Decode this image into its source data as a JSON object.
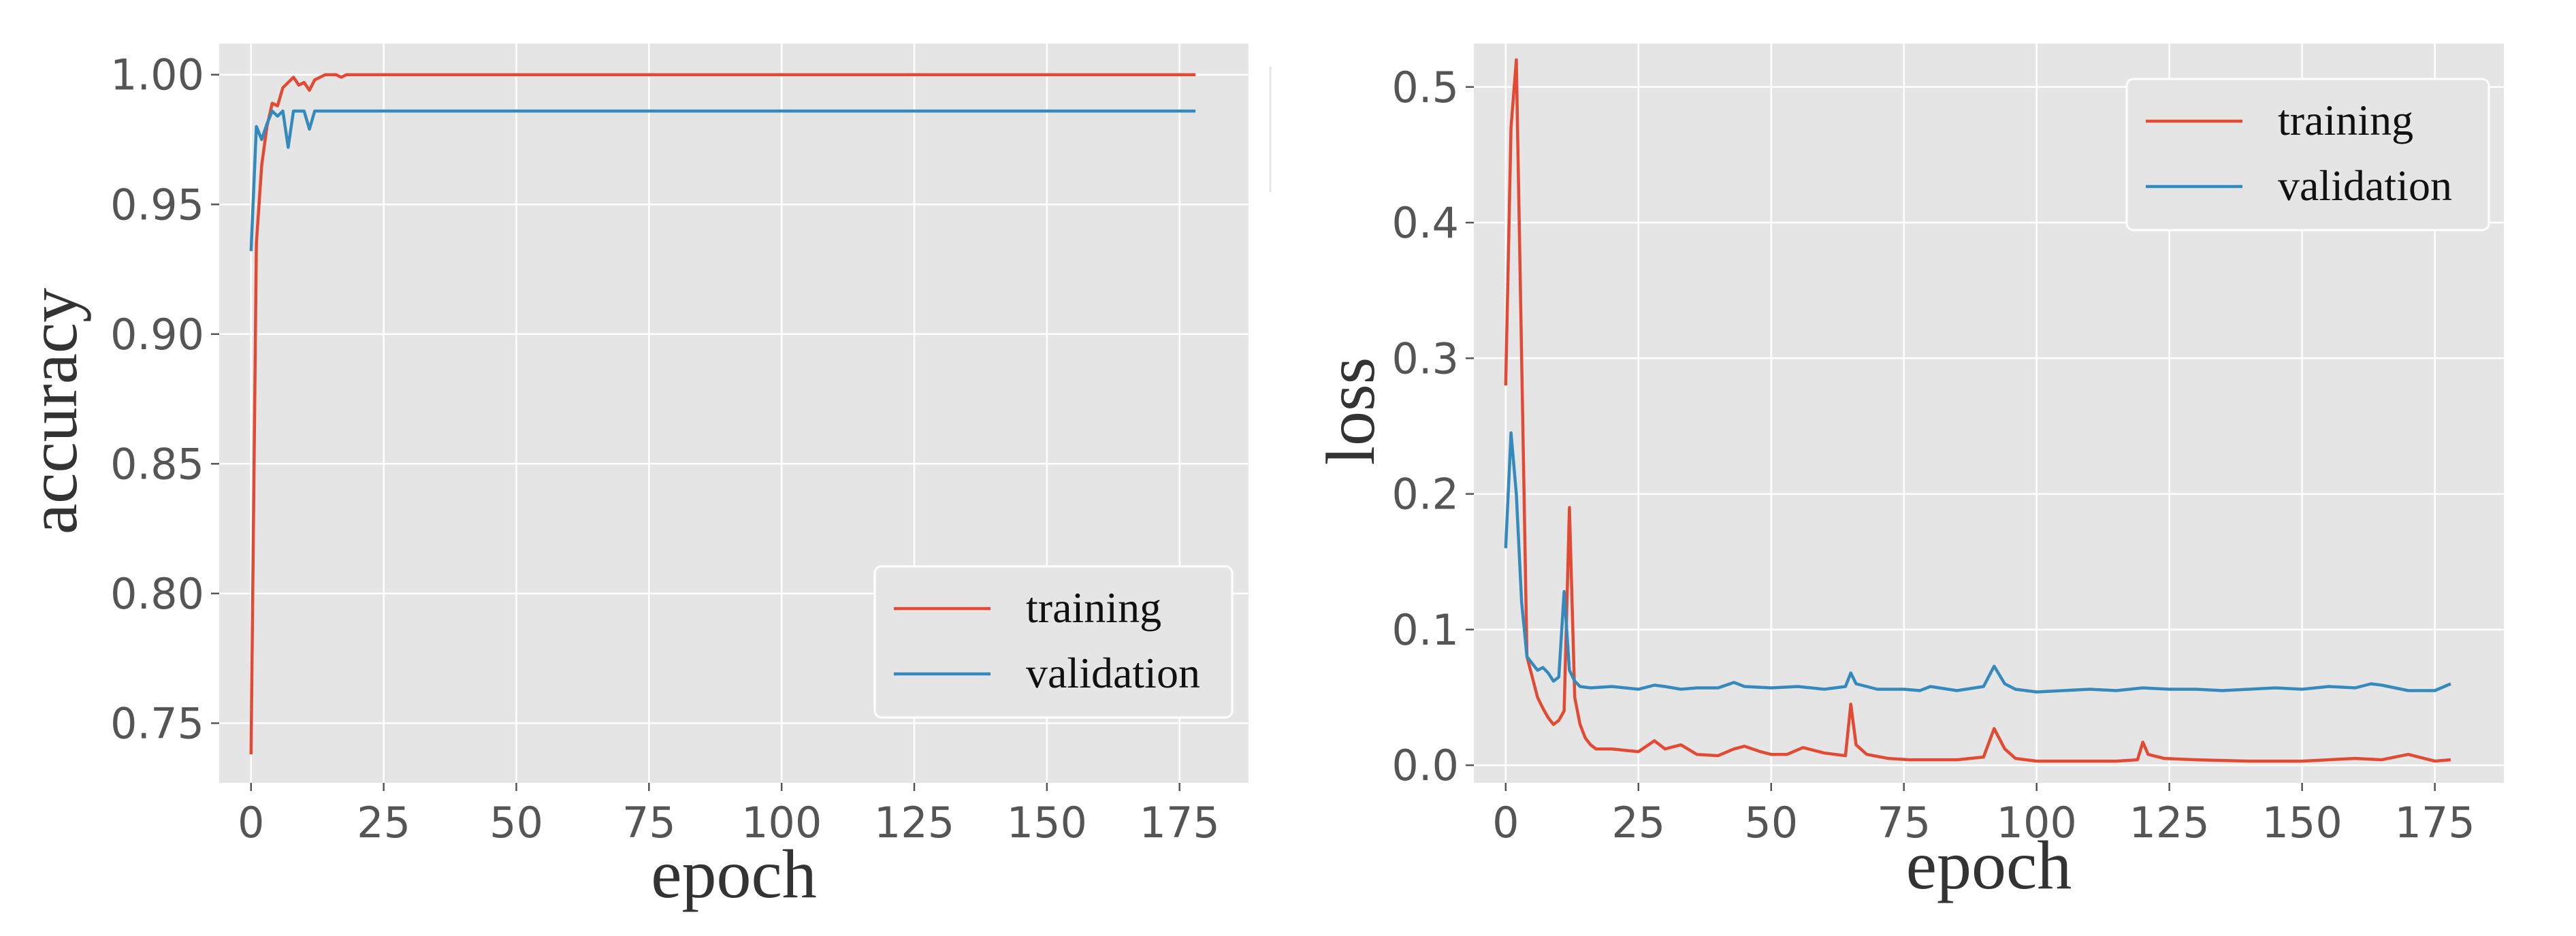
{
  "colors": {
    "training": "#e24a33",
    "validation": "#348abd",
    "background": "#e5e5e5",
    "grid": "#ffffff"
  },
  "chart_data": [
    {
      "type": "line",
      "title": "",
      "xlabel": "epoch",
      "ylabel": "accuracy",
      "xlim": [
        -6,
        188
      ],
      "ylim": [
        0.727,
        1.012
      ],
      "xticks": [
        0,
        25,
        50,
        75,
        100,
        125,
        150,
        175
      ],
      "yticks": [
        0.75,
        0.8,
        0.85,
        0.9,
        0.95,
        1.0
      ],
      "ytick_labels": [
        "0.75",
        "0.80",
        "0.85",
        "0.90",
        "0.95",
        "1.00"
      ],
      "grid": true,
      "legend": {
        "position": "lower-right",
        "entries": [
          "training",
          "validation"
        ]
      },
      "series": [
        {
          "name": "training",
          "color_key": "training",
          "points": [
            [
              0,
              0.738
            ],
            [
              1,
              0.935
            ],
            [
              2,
              0.965
            ],
            [
              3,
              0.98
            ],
            [
              4,
              0.989
            ],
            [
              5,
              0.988
            ],
            [
              6,
              0.995
            ],
            [
              7,
              0.997
            ],
            [
              8,
              0.999
            ],
            [
              9,
              0.996
            ],
            [
              10,
              0.997
            ],
            [
              11,
              0.994
            ],
            [
              12,
              0.998
            ],
            [
              13,
              0.999
            ],
            [
              14,
              1.0
            ],
            [
              15,
              1.0
            ],
            [
              16,
              1.0
            ],
            [
              17,
              0.999
            ],
            [
              18,
              1.0
            ],
            [
              20,
              1.0
            ],
            [
              30,
              1.0
            ],
            [
              60,
              1.0
            ],
            [
              100,
              1.0
            ],
            [
              150,
              1.0
            ],
            [
              178,
              1.0
            ]
          ]
        },
        {
          "name": "validation",
          "color_key": "validation",
          "points": [
            [
              0,
              0.932
            ],
            [
              1,
              0.98
            ],
            [
              2,
              0.975
            ],
            [
              3,
              0.981
            ],
            [
              4,
              0.986
            ],
            [
              5,
              0.984
            ],
            [
              6,
              0.986
            ],
            [
              7,
              0.972
            ],
            [
              8,
              0.986
            ],
            [
              9,
              0.986
            ],
            [
              10,
              0.986
            ],
            [
              11,
              0.979
            ],
            [
              12,
              0.986
            ],
            [
              13,
              0.986
            ],
            [
              20,
              0.986
            ],
            [
              60,
              0.986
            ],
            [
              100,
              0.986
            ],
            [
              150,
              0.986
            ],
            [
              178,
              0.986
            ]
          ]
        }
      ]
    },
    {
      "type": "line",
      "title": "",
      "xlabel": "epoch",
      "ylabel": "loss",
      "xlim": [
        -6,
        188
      ],
      "ylim": [
        -0.013,
        0.532
      ],
      "xticks": [
        0,
        25,
        50,
        75,
        100,
        125,
        150,
        175
      ],
      "yticks": [
        0.0,
        0.1,
        0.2,
        0.3,
        0.4,
        0.5
      ],
      "ytick_labels": [
        "0.0",
        "0.1",
        "0.2",
        "0.3",
        "0.4",
        "0.5"
      ],
      "grid": true,
      "legend": {
        "position": "upper-right",
        "entries": [
          "training",
          "validation"
        ]
      },
      "series": [
        {
          "name": "training",
          "color_key": "training",
          "points": [
            [
              0,
              0.28
            ],
            [
              1,
              0.47
            ],
            [
              2,
              0.52
            ],
            [
              3,
              0.3
            ],
            [
              4,
              0.08
            ],
            [
              5,
              0.065
            ],
            [
              6,
              0.05
            ],
            [
              7,
              0.042
            ],
            [
              8,
              0.035
            ],
            [
              9,
              0.03
            ],
            [
              10,
              0.033
            ],
            [
              11,
              0.04
            ],
            [
              12,
              0.19
            ],
            [
              13,
              0.05
            ],
            [
              14,
              0.03
            ],
            [
              15,
              0.02
            ],
            [
              16,
              0.015
            ],
            [
              17,
              0.012
            ],
            [
              20,
              0.012
            ],
            [
              25,
              0.01
            ],
            [
              28,
              0.018
            ],
            [
              30,
              0.012
            ],
            [
              33,
              0.015
            ],
            [
              36,
              0.008
            ],
            [
              40,
              0.007
            ],
            [
              43,
              0.012
            ],
            [
              45,
              0.014
            ],
            [
              48,
              0.01
            ],
            [
              50,
              0.008
            ],
            [
              53,
              0.008
            ],
            [
              56,
              0.013
            ],
            [
              58,
              0.011
            ],
            [
              60,
              0.009
            ],
            [
              64,
              0.007
            ],
            [
              65,
              0.045
            ],
            [
              66,
              0.015
            ],
            [
              68,
              0.008
            ],
            [
              72,
              0.005
            ],
            [
              76,
              0.004
            ],
            [
              80,
              0.004
            ],
            [
              85,
              0.004
            ],
            [
              90,
              0.006
            ],
            [
              92,
              0.027
            ],
            [
              94,
              0.012
            ],
            [
              96,
              0.005
            ],
            [
              100,
              0.003
            ],
            [
              105,
              0.003
            ],
            [
              110,
              0.003
            ],
            [
              115,
              0.003
            ],
            [
              119,
              0.004
            ],
            [
              120,
              0.017
            ],
            [
              121,
              0.008
            ],
            [
              124,
              0.005
            ],
            [
              130,
              0.004
            ],
            [
              140,
              0.003
            ],
            [
              150,
              0.003
            ],
            [
              160,
              0.005
            ],
            [
              165,
              0.004
            ],
            [
              170,
              0.008
            ],
            [
              175,
              0.003
            ],
            [
              178,
              0.004
            ]
          ]
        },
        {
          "name": "validation",
          "color_key": "validation",
          "points": [
            [
              0,
              0.16
            ],
            [
              1,
              0.245
            ],
            [
              2,
              0.2
            ],
            [
              3,
              0.12
            ],
            [
              4,
              0.08
            ],
            [
              5,
              0.075
            ],
            [
              6,
              0.07
            ],
            [
              7,
              0.072
            ],
            [
              8,
              0.068
            ],
            [
              9,
              0.062
            ],
            [
              10,
              0.065
            ],
            [
              11,
              0.128
            ],
            [
              12,
              0.07
            ],
            [
              13,
              0.062
            ],
            [
              14,
              0.058
            ],
            [
              16,
              0.057
            ],
            [
              20,
              0.058
            ],
            [
              25,
              0.056
            ],
            [
              28,
              0.059
            ],
            [
              30,
              0.058
            ],
            [
              33,
              0.056
            ],
            [
              36,
              0.057
            ],
            [
              40,
              0.057
            ],
            [
              43,
              0.061
            ],
            [
              45,
              0.058
            ],
            [
              50,
              0.057
            ],
            [
              55,
              0.058
            ],
            [
              60,
              0.056
            ],
            [
              64,
              0.058
            ],
            [
              65,
              0.068
            ],
            [
              66,
              0.06
            ],
            [
              70,
              0.056
            ],
            [
              75,
              0.056
            ],
            [
              78,
              0.055
            ],
            [
              80,
              0.058
            ],
            [
              85,
              0.055
            ],
            [
              90,
              0.058
            ],
            [
              92,
              0.073
            ],
            [
              94,
              0.06
            ],
            [
              96,
              0.056
            ],
            [
              100,
              0.054
            ],
            [
              105,
              0.055
            ],
            [
              110,
              0.056
            ],
            [
              115,
              0.055
            ],
            [
              120,
              0.057
            ],
            [
              125,
              0.056
            ],
            [
              130,
              0.056
            ],
            [
              135,
              0.055
            ],
            [
              140,
              0.056
            ],
            [
              145,
              0.057
            ],
            [
              150,
              0.056
            ],
            [
              155,
              0.058
            ],
            [
              160,
              0.057
            ],
            [
              163,
              0.06
            ],
            [
              165,
              0.059
            ],
            [
              170,
              0.055
            ],
            [
              175,
              0.055
            ],
            [
              178,
              0.06
            ]
          ]
        }
      ]
    }
  ]
}
